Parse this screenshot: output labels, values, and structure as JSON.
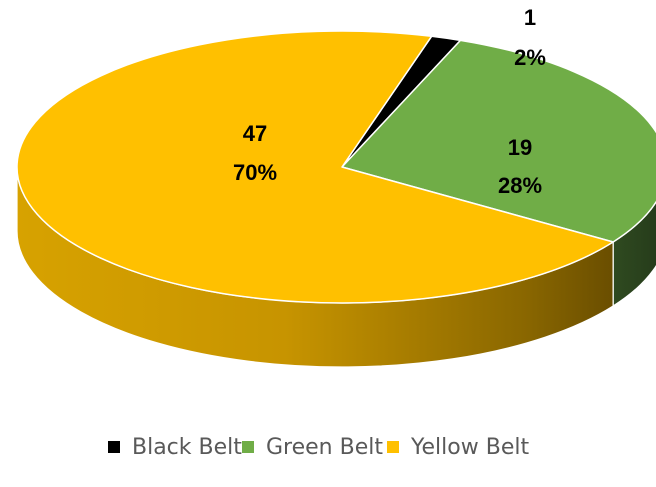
{
  "chart_data": {
    "type": "pie",
    "categories": [
      "Black Belt",
      "Green Belt",
      "Yellow Belt"
    ],
    "values": [
      1,
      19,
      47
    ],
    "percent_labels": [
      "2%",
      "28%",
      "70%"
    ],
    "value_labels": [
      "1",
      "19",
      "47"
    ],
    "colors": [
      "#000000",
      "#70AD47",
      "#FFC000"
    ],
    "legend_position": "bottom",
    "style": "3d-tilted"
  }
}
